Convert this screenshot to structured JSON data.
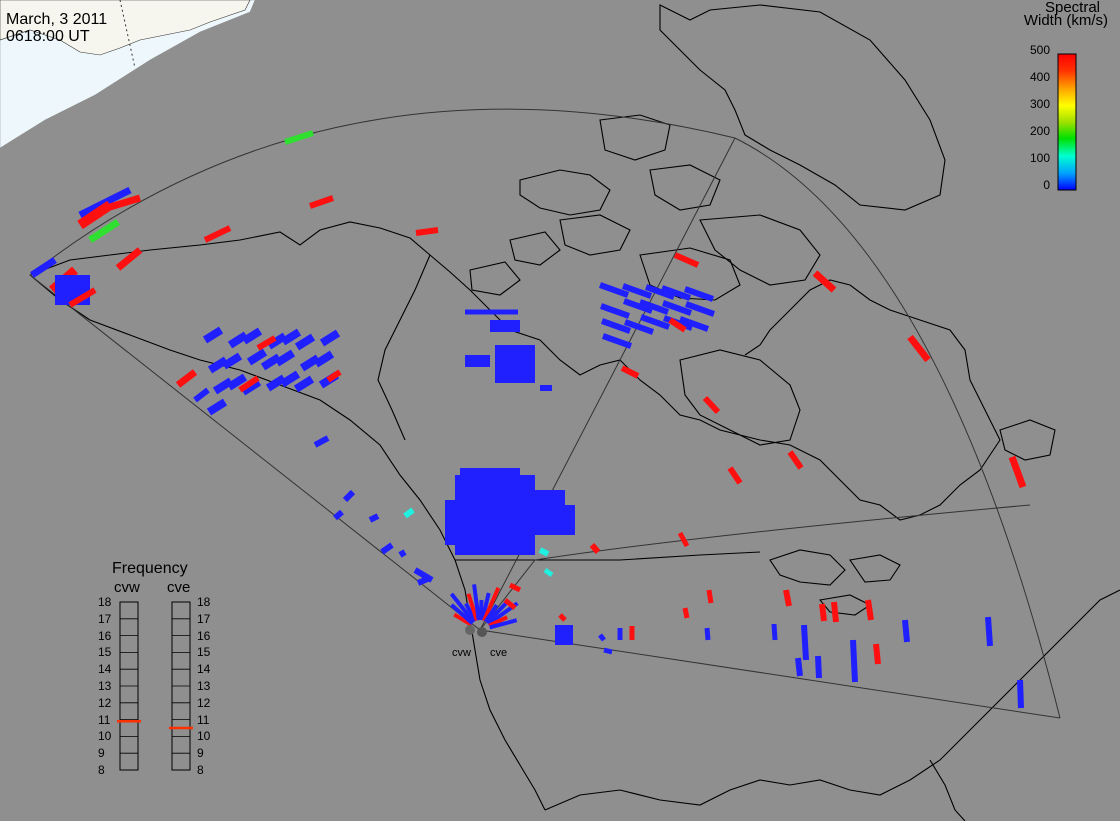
{
  "header": {
    "date": "March, 3 2011",
    "time": "0618:00 UT"
  },
  "colorbar": {
    "title_line1": "Spectral",
    "title_line2": "Width (km/s)",
    "ticks": [
      "500",
      "400",
      "300",
      "200",
      "100",
      "0"
    ],
    "scale_colors": [
      "#0000ff",
      "#00a0ff",
      "#00ffd0",
      "#00e000",
      "#a0e000",
      "#ffff00",
      "#ffa000",
      "#ff3000",
      "#ff0000"
    ]
  },
  "frequency_panel": {
    "title": "Frequency",
    "radars": [
      {
        "name": "cvw",
        "frequency_mhz": 10.9
      },
      {
        "name": "cve",
        "frequency_mhz": 10.5
      }
    ],
    "ticks": [
      "18",
      "17",
      "16",
      "15",
      "14",
      "13",
      "12",
      "11",
      "10",
      "9",
      "8"
    ]
  },
  "radar_labels": [
    "cvw",
    "cve"
  ],
  "colors": {
    "background": "#8f8f8f",
    "land_outline": "#000000",
    "ocean_ice": "#ecf6fb",
    "high_width": "#ff1010",
    "low_width": "#2020ff",
    "mid_width_green": "#30e030",
    "mid_width_cyan": "#20f0e0"
  }
}
